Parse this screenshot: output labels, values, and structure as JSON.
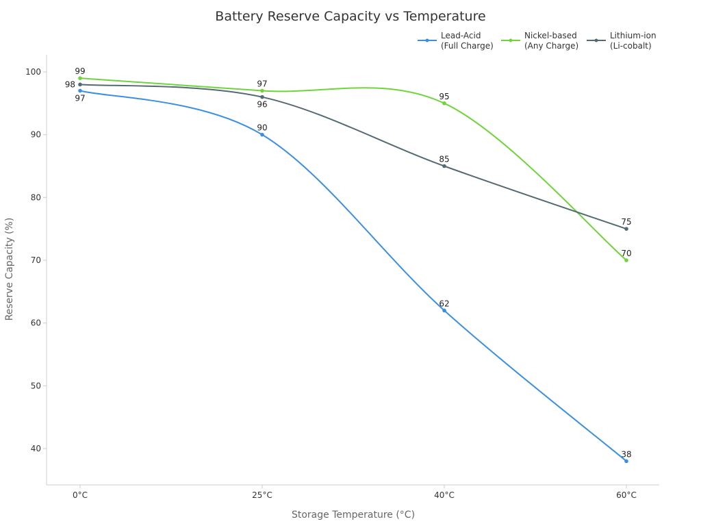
{
  "chart_data": {
    "type": "line",
    "title": "Battery Reserve Capacity vs Temperature",
    "xlabel": "Storage Temperature (°C)",
    "ylabel": "Reserve Capacity (%)",
    "categories": [
      "0°C",
      "25°C",
      "40°C",
      "60°C"
    ],
    "y_ticks": [
      40,
      50,
      60,
      70,
      80,
      90,
      100
    ],
    "ylim": [
      34,
      103
    ],
    "grid": false,
    "legend_position": "top-right",
    "smooth": true,
    "series": [
      {
        "name_line1": "Lead-Acid",
        "name_line2": "(Full Charge)",
        "color": "#3a8fe3",
        "values": [
          97,
          90,
          62,
          38
        ]
      },
      {
        "name_line1": "Nickel-based",
        "name_line2": "(Any Charge)",
        "color": "#6ed43a",
        "values": [
          99,
          97,
          95,
          70
        ]
      },
      {
        "name_line1": "Lithium-ion",
        "name_line2": "(Li-cobalt)",
        "color": "#546a73",
        "values": [
          98,
          96,
          85,
          75
        ]
      }
    ]
  }
}
